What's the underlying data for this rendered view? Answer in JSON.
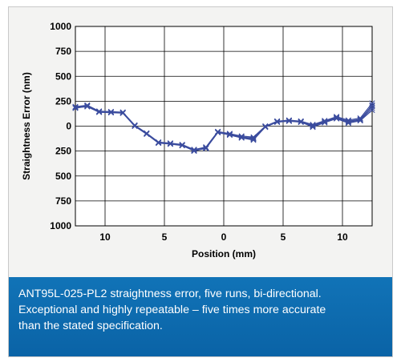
{
  "chart_data": {
    "type": "line",
    "title": "",
    "xlabel": "Position (mm)",
    "ylabel": "Straightness Error (nm)",
    "xlim": [
      -12.5,
      12.5
    ],
    "ylim": [
      -1000,
      1000
    ],
    "x_ticks": [
      {
        "value": -10,
        "label": "10"
      },
      {
        "value": -5,
        "label": "5"
      },
      {
        "value": 0,
        "label": "0"
      },
      {
        "value": 5,
        "label": "5"
      },
      {
        "value": 10,
        "label": "10"
      }
    ],
    "y_ticks": [
      {
        "value": 1000,
        "label": "1000"
      },
      {
        "value": 750,
        "label": "750"
      },
      {
        "value": 500,
        "label": "500"
      },
      {
        "value": 250,
        "label": "250"
      },
      {
        "value": 0,
        "label": "0"
      },
      {
        "value": -250,
        "label": "250"
      },
      {
        "value": -500,
        "label": "500"
      },
      {
        "value": -750,
        "label": "750"
      },
      {
        "value": -1000,
        "label": "1000"
      }
    ],
    "grid": true,
    "line_color": "#3b4c9e",
    "series": [
      {
        "x": [
          -12.5,
          -11.5,
          -10.5,
          -9.5,
          -8.5,
          -7.5,
          -6.5,
          -5.5,
          -4.5,
          -3.5,
          -2.5,
          -1.5,
          -0.5,
          0.5,
          1.5,
          2.5,
          3.5,
          4.5,
          5.5,
          6.5,
          7.5,
          8.5,
          9.5,
          10.5,
          11.5,
          12.5
        ],
        "values": [
          190,
          205,
          145,
          140,
          135,
          5,
          -75,
          -165,
          -175,
          -190,
          -240,
          -215,
          -60,
          -80,
          -110,
          -120,
          -5,
          45,
          55,
          45,
          5,
          45,
          85,
          50,
          70,
          200
        ]
      },
      {
        "x": [
          -12.5,
          -11.5,
          -10.5,
          -9.5,
          -8.5,
          -7.5,
          -6.5,
          -5.5,
          -4.5,
          -3.5,
          -2.5,
          -1.5,
          -0.5,
          0.5,
          1.5,
          2.5,
          3.5,
          4.5,
          5.5,
          6.5,
          7.5,
          8.5,
          9.5,
          10.5,
          11.5,
          12.5
        ],
        "values": [
          180,
          200,
          140,
          135,
          130,
          0,
          -80,
          -170,
          -180,
          -195,
          -245,
          -225,
          -65,
          -85,
          -115,
          -130,
          -10,
          40,
          50,
          40,
          -5,
          40,
          80,
          40,
          60,
          180
        ]
      },
      {
        "x": [
          -12.5,
          -11.5,
          -10.5,
          -9.5,
          -8.5,
          -7.5,
          -6.5,
          -5.5,
          -4.5,
          -3.5,
          -2.5,
          -1.5,
          -0.5,
          0.5,
          1.5,
          2.5,
          3.5,
          4.5,
          5.5,
          6.5,
          7.5,
          8.5,
          9.5,
          10.5,
          11.5,
          12.5
        ],
        "values": [
          195,
          210,
          150,
          145,
          140,
          10,
          -70,
          -160,
          -170,
          -185,
          -235,
          -210,
          -55,
          -75,
          -100,
          -110,
          0,
          50,
          60,
          50,
          15,
          55,
          95,
          60,
          80,
          230
        ]
      },
      {
        "x": [
          -12.5,
          -11.5,
          -10.5,
          -9.5,
          -8.5,
          -7.5,
          -6.5,
          -5.5,
          -4.5,
          -3.5,
          -2.5,
          -1.5,
          -0.5,
          0.5,
          1.5,
          2.5,
          3.5,
          4.5,
          5.5,
          6.5,
          7.5,
          8.5,
          9.5,
          10.5,
          11.5,
          12.5
        ],
        "values": [
          185,
          195,
          140,
          138,
          132,
          2,
          -78,
          -168,
          -178,
          -192,
          -250,
          -220,
          -62,
          -90,
          -118,
          -140,
          -8,
          42,
          52,
          42,
          -10,
          35,
          75,
          30,
          55,
          160
        ]
      },
      {
        "x": [
          -12.5,
          -11.5,
          -10.5,
          -9.5,
          -8.5,
          -7.5,
          -6.5,
          -5.5,
          -4.5,
          -3.5,
          -2.5,
          -1.5,
          -0.5,
          0.5,
          1.5,
          2.5,
          3.5,
          4.5,
          5.5,
          6.5,
          7.5,
          8.5,
          9.5,
          10.5,
          11.5,
          12.5
        ],
        "values": [
          188,
          202,
          145,
          142,
          136,
          6,
          -74,
          -164,
          -174,
          -188,
          -238,
          -218,
          -58,
          -82,
          -108,
          -125,
          -4,
          46,
          56,
          46,
          8,
          48,
          88,
          45,
          65,
          210
        ]
      }
    ]
  },
  "caption": {
    "line1": "ANT95L-025-PL2 straightness error, five runs, bi-directional.",
    "line2": "Exceptional and highly repeatable – five times more accurate",
    "line3": "than the stated specification."
  }
}
